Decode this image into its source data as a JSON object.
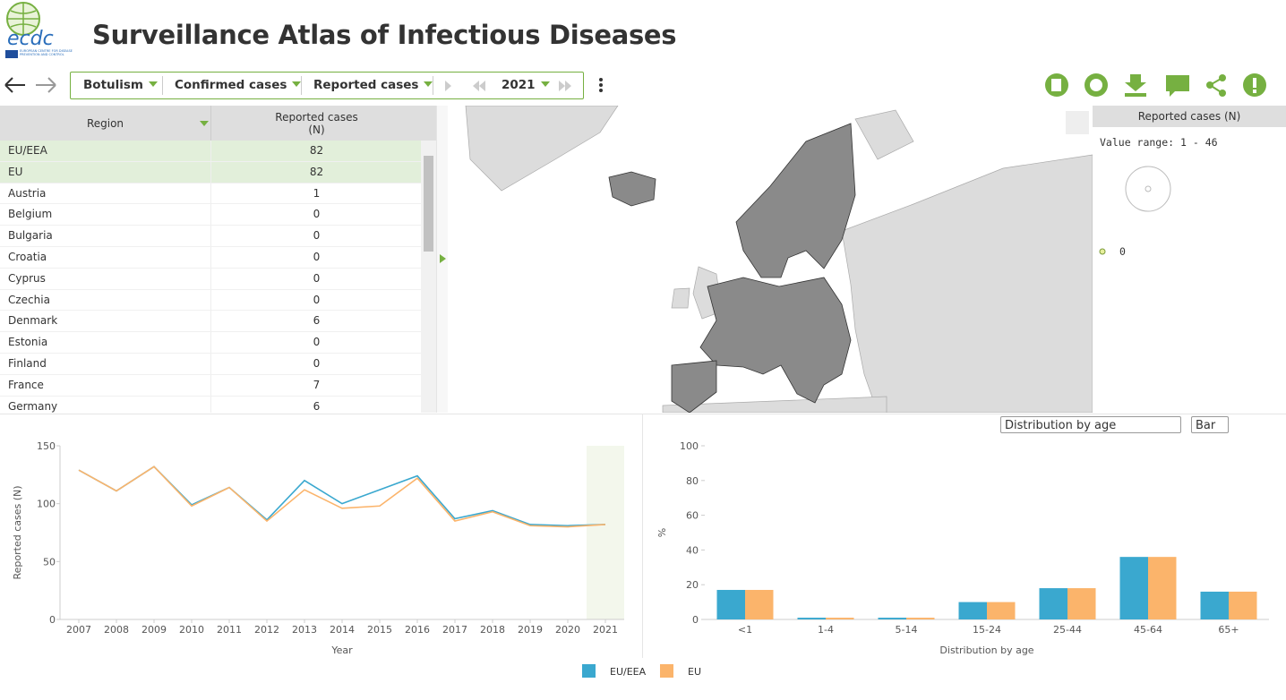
{
  "header": {
    "logo_text": "ecdc",
    "logo_subtext": "EUROPEAN CENTRE FOR DISEASE PREVENTION AND CONTROL",
    "title": "Surveillance Atlas of Infectious Diseases"
  },
  "toolbar": {
    "disease": "Botulism",
    "population": "Confirmed cases",
    "indicator": "Reported cases",
    "year": "2021"
  },
  "table": {
    "headers": [
      "Region",
      "Reported cases (N)"
    ],
    "rows": [
      [
        "EU/EEA",
        82
      ],
      [
        "EU",
        82
      ],
      [
        "Austria",
        1
      ],
      [
        "Belgium",
        0
      ],
      [
        "Bulgaria",
        0
      ],
      [
        "Croatia",
        0
      ],
      [
        "Cyprus",
        0
      ],
      [
        "Czechia",
        0
      ],
      [
        "Denmark",
        6
      ],
      [
        "Estonia",
        0
      ],
      [
        "Finland",
        0
      ],
      [
        "France",
        7
      ],
      [
        "Germany",
        6
      ]
    ]
  },
  "map_legend": {
    "title": "Reported cases (N)",
    "range_text": "Value range: 1 - 46",
    "zero_label": "0"
  },
  "controls": {
    "breakdown": "Distribution by age",
    "chart_kind": "Bar"
  },
  "chart_data": [
    {
      "type": "line",
      "x_label": "Year",
      "y_label": "Reported cases (N)",
      "x": [
        2007,
        2008,
        2009,
        2010,
        2011,
        2012,
        2013,
        2014,
        2015,
        2016,
        2017,
        2018,
        2019,
        2020,
        2021
      ],
      "xlim": [
        2006.5,
        2021.5
      ],
      "xticks": [
        2007,
        2008,
        2009,
        2010,
        2011,
        2012,
        2013,
        2014,
        2015,
        2016,
        2017,
        2018,
        2019,
        2020,
        2021
      ],
      "ylim": [
        0,
        150
      ],
      "yticks": [
        0,
        50,
        100,
        150
      ],
      "highlight_x": 2021,
      "grid": false,
      "series": [
        {
          "color": "#3aa8cf",
          "values": [
            129,
            111,
            132,
            99,
            114,
            86,
            120,
            100,
            112,
            124,
            87,
            94,
            82,
            81,
            82
          ]
        },
        {
          "color": "#fbb46b",
          "values": [
            129,
            111,
            132,
            98,
            114,
            85,
            112,
            96,
            98,
            122,
            85,
            93,
            81,
            80,
            82
          ]
        }
      ]
    },
    {
      "type": "bar",
      "x_label": "Distribution by age",
      "y_label": "%",
      "categories": [
        "<1",
        "1-4",
        "5-14",
        "15-24",
        "25-44",
        "45-64",
        "65+"
      ],
      "ylim": [
        0,
        100
      ],
      "yticks": [
        0,
        20,
        40,
        60,
        80,
        100
      ],
      "grid": false,
      "series": [
        {
          "name": "EU/EEA",
          "color": "#3aa8cf",
          "values": [
            17,
            1,
            1,
            10,
            18,
            36,
            16
          ]
        },
        {
          "name": "EU",
          "color": "#fbb46b",
          "values": [
            17,
            1,
            1,
            10,
            18,
            36,
            16
          ]
        }
      ]
    }
  ]
}
